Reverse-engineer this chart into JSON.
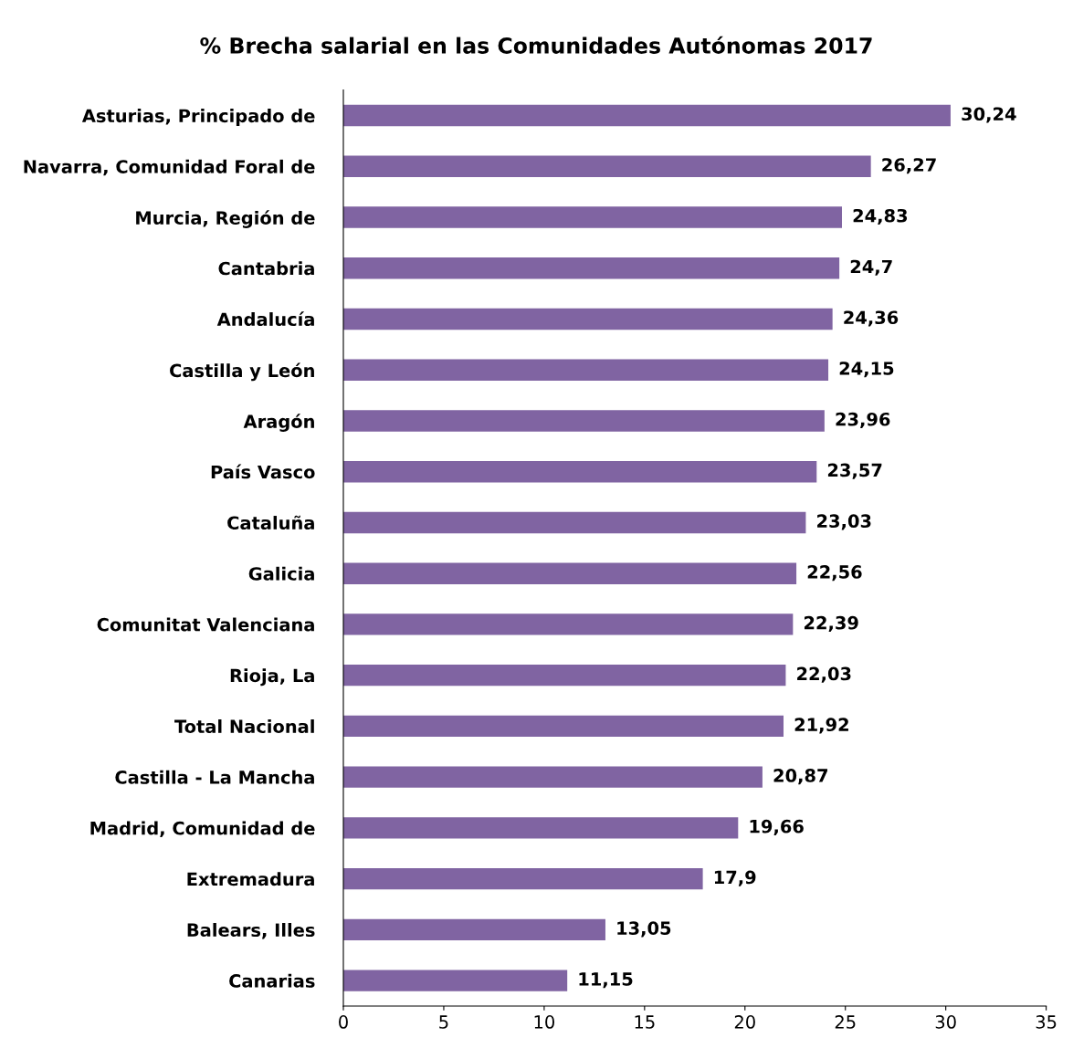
{
  "chart_data": {
    "type": "bar",
    "orientation": "horizontal",
    "title": "% Brecha salarial en las Comunidades Autónomas 2017",
    "categories": [
      "Asturias, Principado de",
      "Navarra, Comunidad Foral de",
      "Murcia, Región de",
      "Cantabria",
      "Andalucía",
      "Castilla y León",
      "Aragón",
      "País Vasco",
      "Cataluña",
      "Galicia",
      "Comunitat Valenciana",
      "Rioja, La",
      "Total Nacional",
      "Castilla - La Mancha",
      "Madrid, Comunidad de",
      "Extremadura",
      "Balears, Illes",
      "Canarias"
    ],
    "values": [
      30.24,
      26.27,
      24.83,
      24.7,
      24.36,
      24.15,
      23.96,
      23.57,
      23.03,
      22.56,
      22.39,
      22.03,
      21.92,
      20.87,
      19.66,
      17.9,
      13.05,
      11.15
    ],
    "value_labels": [
      "30,24",
      "26,27",
      "24,83",
      "24,7",
      "24,36",
      "24,15",
      "23,96",
      "23,57",
      "23,03",
      "22,56",
      "22,39",
      "22,03",
      "21,92",
      "20,87",
      "19,66",
      "17,9",
      "13,05",
      "11,15"
    ],
    "color": "#8064a2",
    "xlim": [
      0,
      35
    ],
    "xticks": [
      0,
      5,
      10,
      15,
      20,
      25,
      30,
      35
    ],
    "grid": false
  }
}
